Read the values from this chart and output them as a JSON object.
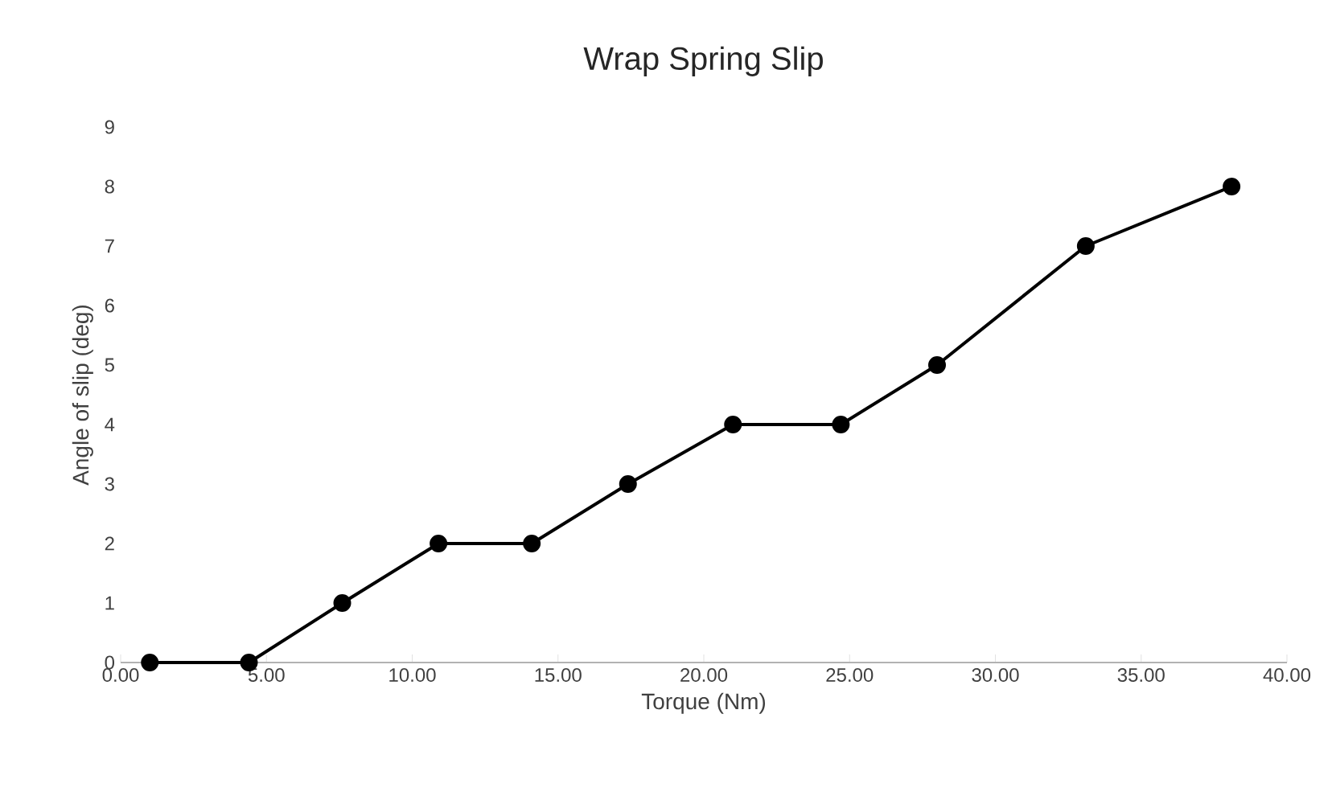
{
  "chart_data": {
    "type": "line",
    "title": "Wrap Spring Slip",
    "xlabel": "Torque (Nm)",
    "ylabel": "Angle of slip (deg)",
    "x": [
      1.0,
      4.4,
      7.6,
      10.9,
      14.1,
      17.4,
      21.0,
      24.7,
      28.0,
      33.1,
      38.1
    ],
    "series": [
      {
        "color": "#000000",
        "values": [
          0,
          0,
          1,
          2,
          2,
          3,
          4,
          4,
          5,
          7,
          8
        ]
      }
    ],
    "xlim": [
      0,
      40
    ],
    "xticks": [
      {
        "value": 0,
        "label": "0.00"
      },
      {
        "value": 5,
        "label": "5.00"
      },
      {
        "value": 10,
        "label": "10.00"
      },
      {
        "value": 15,
        "label": "15.00"
      },
      {
        "value": 20,
        "label": "20.00"
      },
      {
        "value": 25,
        "label": "25.00"
      },
      {
        "value": 30,
        "label": "30.00"
      },
      {
        "value": 35,
        "label": "35.00"
      },
      {
        "value": 40,
        "label": "40.00"
      }
    ],
    "ylim": [
      0,
      9
    ],
    "yticks": [
      0,
      1,
      2,
      3,
      4,
      5,
      6,
      7,
      8,
      9
    ],
    "grid": false,
    "marker": "circle",
    "line_style": "solid"
  }
}
